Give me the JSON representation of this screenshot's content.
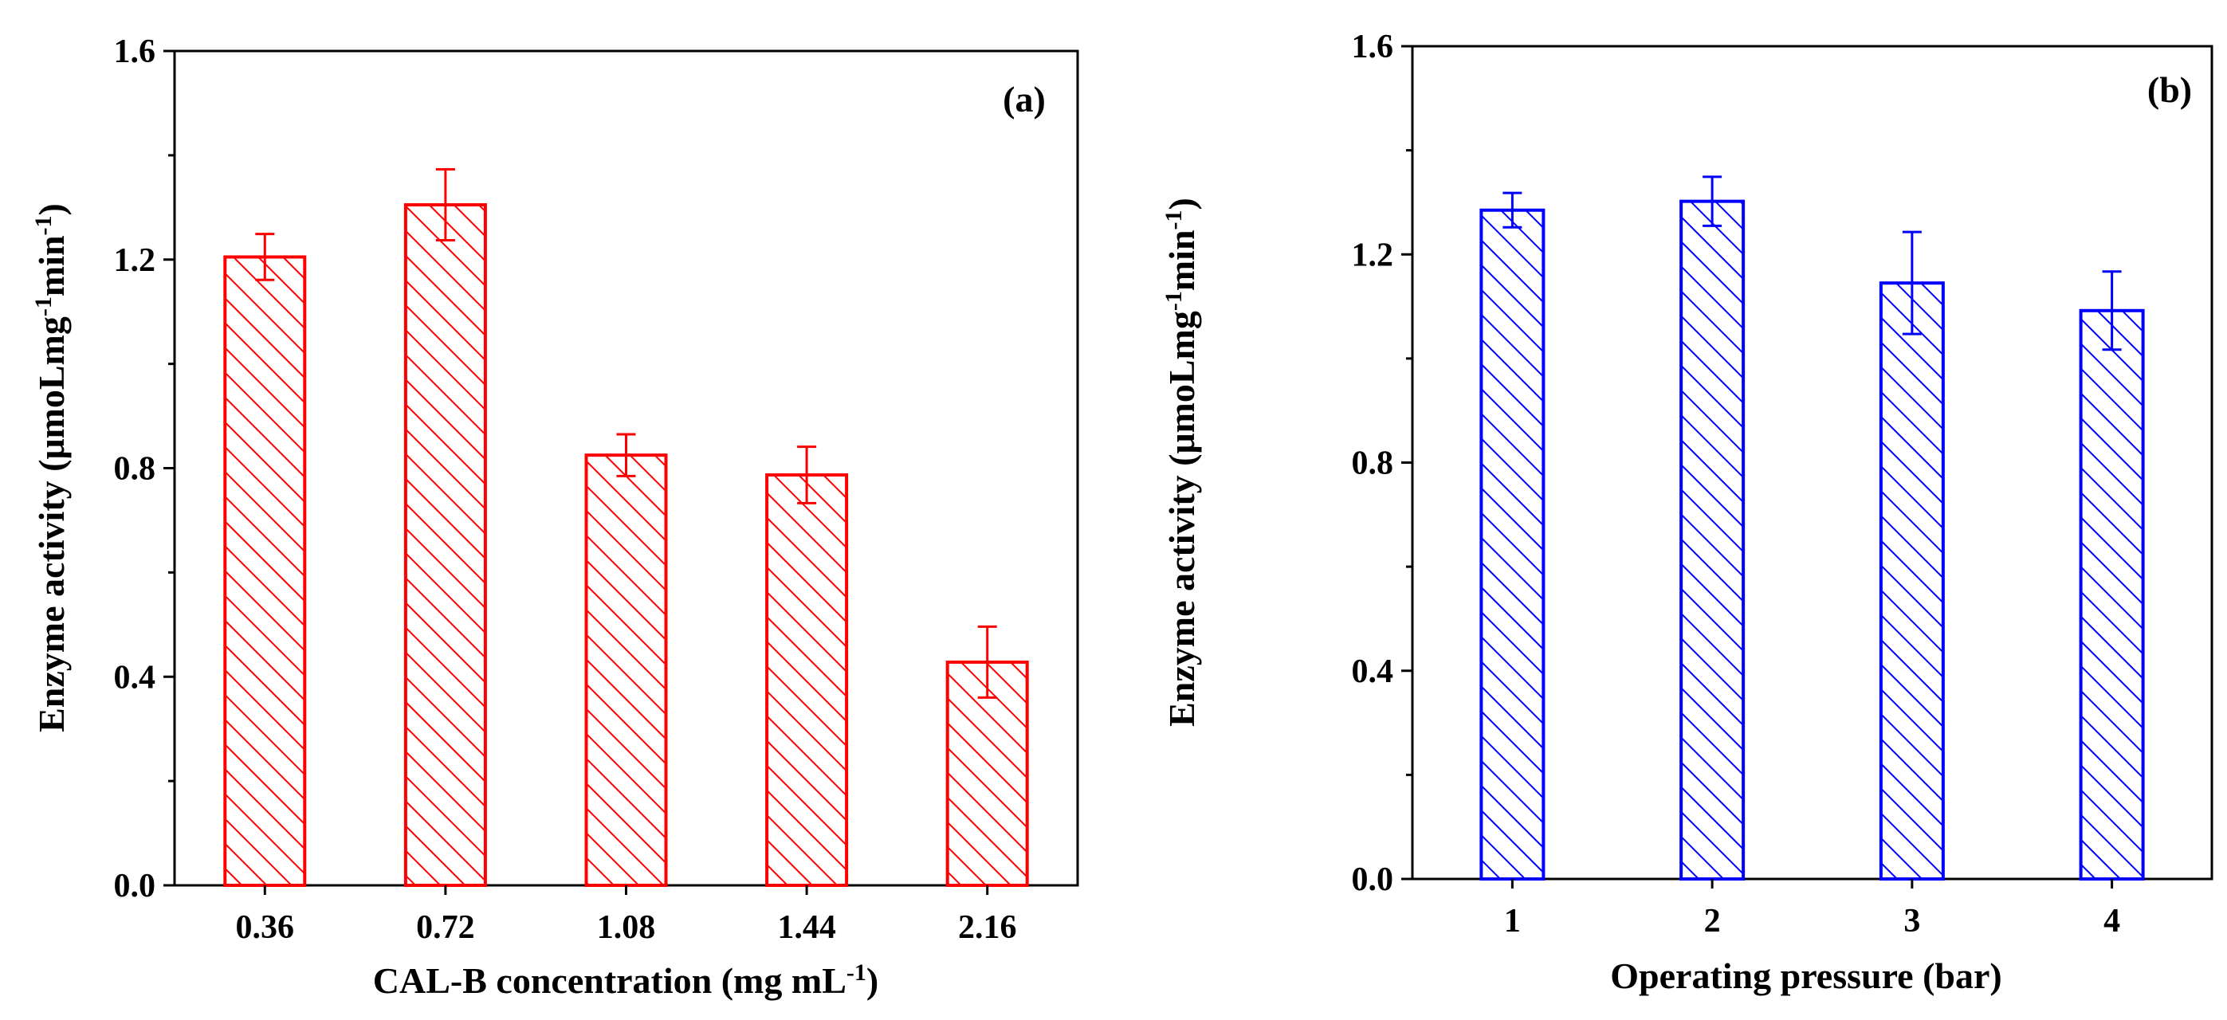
{
  "chart_data": [
    {
      "type": "bar",
      "panel_label": "(a)",
      "categories": [
        "0.36",
        "0.72",
        "1.08",
        "1.44",
        "2.16"
      ],
      "values": [
        1.205,
        1.305,
        0.825,
        0.787,
        0.428
      ],
      "errors": [
        0.044,
        0.068,
        0.04,
        0.054,
        0.068
      ],
      "xlabel": {
        "base": "CAL-B concentration (mg mL",
        "sup": "-1",
        "tail": ")"
      },
      "ylabel": {
        "p1": "Enzyme activity (μmoLmg",
        "s1": "-1",
        "p2": "min",
        "s2": "-1",
        "p3": ")"
      },
      "ylim": [
        0,
        1.6
      ],
      "yticks": [
        "0.0",
        "0.4",
        "0.8",
        "1.2",
        "1.6"
      ],
      "color": "#ff0000",
      "grid": false
    },
    {
      "type": "bar",
      "panel_label": "(b)",
      "categories": [
        "1",
        "2",
        "3",
        "4"
      ],
      "values": [
        1.285,
        1.302,
        1.145,
        1.092
      ],
      "errors": [
        0.033,
        0.047,
        0.098,
        0.075
      ],
      "xlabel": {
        "base": "Operating pressure (bar)",
        "sup": "",
        "tail": ""
      },
      "ylabel": {
        "p1": "Enzyme activity (μmoLmg",
        "s1": "-1",
        "p2": "min",
        "s2": "-1",
        "p3": ")"
      },
      "ylim": [
        0,
        1.6
      ],
      "yticks": [
        "0.0",
        "0.4",
        "0.8",
        "1.2",
        "1.6"
      ],
      "color": "#0000ff",
      "grid": false
    }
  ]
}
